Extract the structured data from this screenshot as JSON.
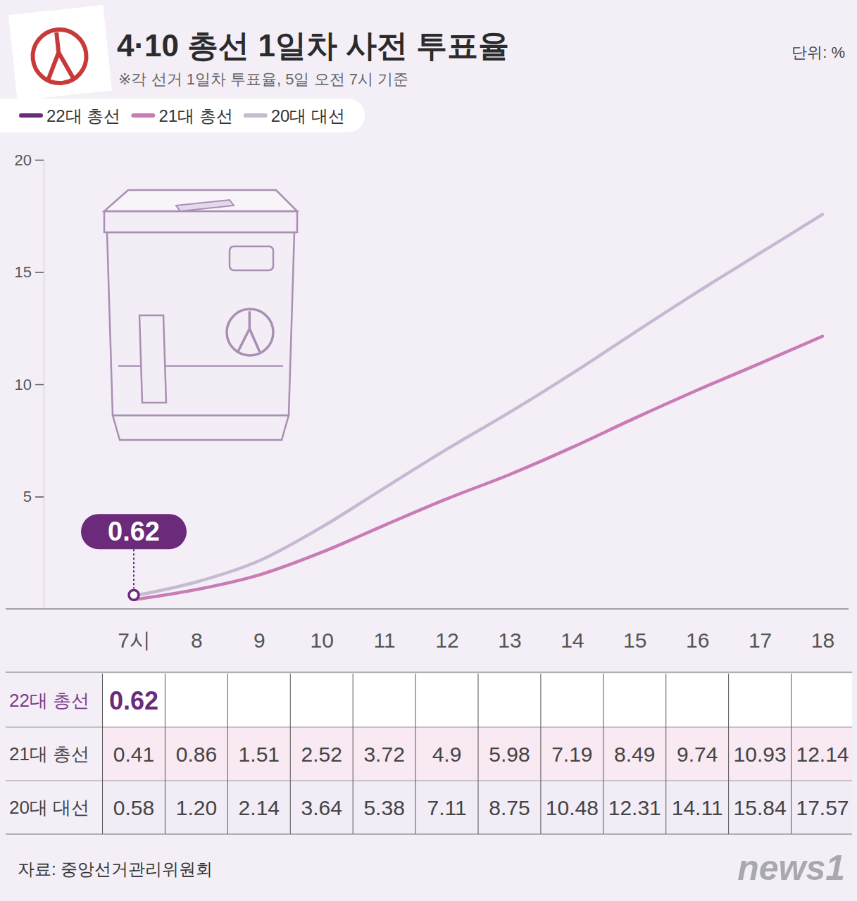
{
  "chart_data": {
    "type": "line",
    "title": "4·10 총선 1일차 사전 투표율",
    "subtitle": "※각 선거 1일차 투표율, 5일 오전 7시 기준",
    "ylabel": "단위: %",
    "source": "자료: 중앙선거관리위원회",
    "credit": "news1",
    "categories": [
      "7시",
      "8",
      "9",
      "10",
      "11",
      "12",
      "13",
      "14",
      "15",
      "16",
      "17",
      "18"
    ],
    "series": [
      {
        "name": "22대 총선",
        "color": "#6b2a7a",
        "marker": "circle",
        "data_labels": true,
        "values": [
          0.62,
          null,
          null,
          null,
          null,
          null,
          null,
          null,
          null,
          null,
          null,
          null
        ],
        "value_labels": [
          "0.62",
          null,
          null,
          null,
          null,
          null,
          null,
          null,
          null,
          null,
          null,
          null
        ]
      },
      {
        "name": "21대 총선",
        "color": "#c97bb6",
        "values": [
          0.41,
          0.86,
          1.51,
          2.52,
          3.72,
          4.9,
          5.98,
          7.19,
          8.49,
          9.74,
          10.93,
          12.14
        ],
        "value_labels": [
          "0.41",
          "0.86",
          "1.51",
          "2.52",
          "3.72",
          "4.9",
          "5.98",
          "7.19",
          "8.49",
          "9.74",
          "10.93",
          "12.14"
        ]
      },
      {
        "name": "20대 대선",
        "color": "#c6bad3",
        "values": [
          0.58,
          1.2,
          2.14,
          3.64,
          5.38,
          7.11,
          8.75,
          10.48,
          12.31,
          14.11,
          15.84,
          17.57
        ],
        "value_labels": [
          "0.58",
          "1.20",
          "2.14",
          "3.64",
          "5.38",
          "7.11",
          "8.75",
          "10.48",
          "12.31",
          "14.11",
          "15.84",
          "17.57"
        ]
      }
    ],
    "ylim": [
      0,
      20
    ],
    "yticks": [
      5,
      10,
      15,
      20
    ],
    "legend": "top-left",
    "grid": false
  }
}
